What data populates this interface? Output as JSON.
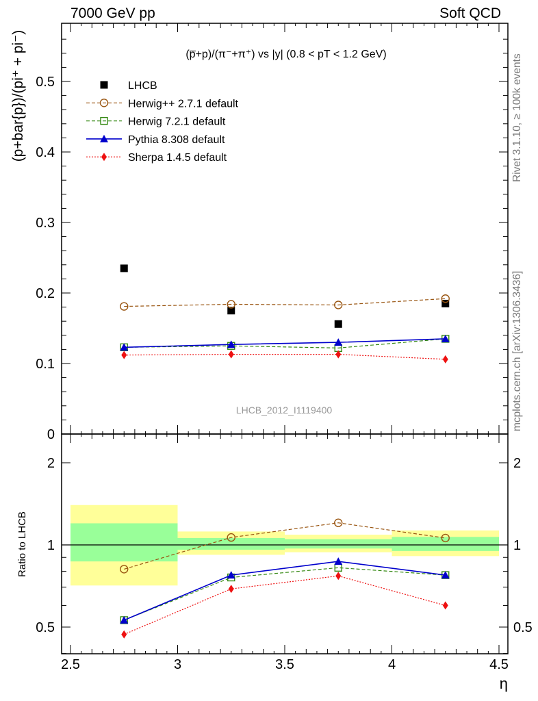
{
  "header": {
    "left": "7000 GeV pp",
    "right": "Soft QCD"
  },
  "side_labels": {
    "rivet": "Rivet 3.1.10, ≥ 100k events",
    "arxiv": "mcplots.cern.ch [arXiv:1306.3436]"
  },
  "chart_data": [
    {
      "panel": "main",
      "type": "scatter",
      "title": "(p̅+p)/(π⁻+π⁺) vs |y| (0.8 < pT < 1.2 GeV)",
      "watermark": "LHCB_2012_I1119400",
      "xlabel": "η",
      "ylabel": "(p+bar{p})/(pi⁺ + pi⁻)",
      "xlim": [
        2.5,
        4.5
      ],
      "ylim": [
        0,
        0.58
      ],
      "yticks": [
        0,
        0.1,
        0.2,
        0.3,
        0.4,
        0.5
      ],
      "ytick_labels": [
        "0",
        "0.1",
        "0.2",
        "0.3",
        "0.4",
        "0.5"
      ],
      "legend_position": "top-left",
      "x": [
        2.75,
        3.25,
        3.75,
        4.25
      ],
      "series": [
        {
          "name": "LHCB",
          "color": "#000000",
          "style": "data",
          "marker": "square-filled",
          "values": [
            0.235,
            0.175,
            0.156,
            0.185
          ]
        },
        {
          "name": "Herwig++ 2.7.1 default",
          "color": "#995511",
          "style": "dashed",
          "marker": "circle-open",
          "values": [
            0.181,
            0.184,
            0.183,
            0.192
          ]
        },
        {
          "name": "Herwig 7.2.1 default",
          "color": "#338811",
          "style": "dashed",
          "marker": "square-open",
          "values": [
            0.123,
            0.125,
            0.122,
            0.135
          ]
        },
        {
          "name": "Pythia 8.308 default",
          "color": "#0000cc",
          "style": "solid",
          "marker": "triangle-filled",
          "values": [
            0.123,
            0.127,
            0.13,
            0.135
          ]
        },
        {
          "name": "Sherpa 1.4.5 default",
          "color": "#ee1111",
          "style": "dotted",
          "marker": "diamond-filled",
          "values": [
            0.112,
            0.113,
            0.113,
            0.106
          ]
        }
      ]
    },
    {
      "panel": "ratio",
      "type": "line",
      "ylabel": "Ratio to LHCB",
      "xlabel": "η",
      "xlim": [
        2.5,
        4.5
      ],
      "ylim": [
        0.35,
        2.3
      ],
      "yscale": "log",
      "yticks": [
        0.5,
        1,
        2
      ],
      "ytick_labels": [
        "0.5",
        "1",
        "2"
      ],
      "xticks": [
        2.5,
        3,
        3.5,
        4,
        4.5
      ],
      "xtick_labels": [
        "2.5",
        "3",
        "3.5",
        "4",
        "4.5"
      ],
      "x": [
        2.75,
        3.25,
        3.75,
        4.25
      ],
      "bands": [
        {
          "x_lo": 2.5,
          "x_hi": 3.0,
          "stat": [
            0.87,
            1.2
          ],
          "total": [
            0.71,
            1.4
          ]
        },
        {
          "x_lo": 3.0,
          "x_hi": 3.5,
          "stat": [
            0.96,
            1.06
          ],
          "total": [
            0.92,
            1.12
          ]
        },
        {
          "x_lo": 3.5,
          "x_hi": 4.0,
          "stat": [
            0.97,
            1.05
          ],
          "total": [
            0.94,
            1.09
          ]
        },
        {
          "x_lo": 4.0,
          "x_hi": 4.5,
          "stat": [
            0.95,
            1.07
          ],
          "total": [
            0.91,
            1.13
          ]
        }
      ],
      "series": [
        {
          "name": "Herwig++ 2.7.1 default",
          "color": "#995511",
          "style": "dashed",
          "marker": "circle-open",
          "values": [
            0.815,
            1.065,
            1.205,
            1.06
          ]
        },
        {
          "name": "Herwig 7.2.1 default",
          "color": "#338811",
          "style": "dashed",
          "marker": "square-open",
          "values": [
            0.53,
            0.76,
            0.825,
            0.775
          ]
        },
        {
          "name": "Pythia 8.308 default",
          "color": "#0000cc",
          "style": "solid",
          "marker": "triangle-filled",
          "values": [
            0.53,
            0.775,
            0.87,
            0.775
          ]
        },
        {
          "name": "Sherpa 1.4.5 default",
          "color": "#ee1111",
          "style": "dotted",
          "marker": "diamond-filled",
          "values": [
            0.47,
            0.69,
            0.77,
            0.6
          ]
        }
      ]
    }
  ],
  "colors": {
    "band_total": "#ffff99",
    "band_stat": "#99ff99",
    "watermark": "#999999"
  }
}
